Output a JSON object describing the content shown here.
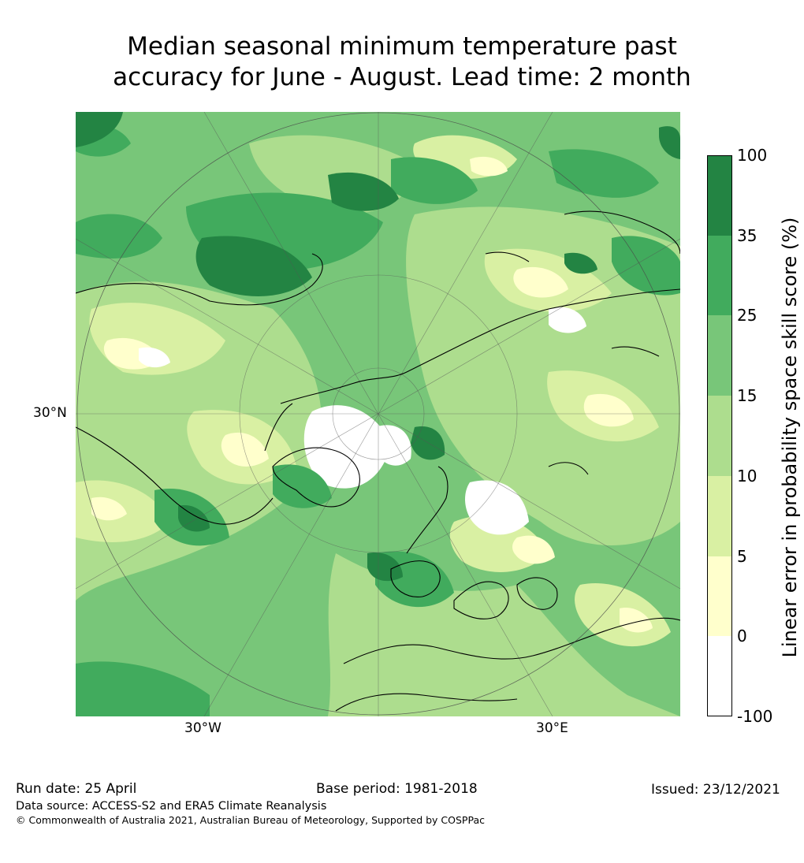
{
  "title_line1": "Median seasonal minimum temperature past",
  "title_line2": "accuracy for June - August. Lead time: 2 month",
  "map": {
    "lat_label": "30°N",
    "lon_labels": [
      "30°W",
      "30°E"
    ]
  },
  "colorbar": {
    "label": "Linear error in probability space skill score (%)",
    "ticks": [
      "100",
      "35",
      "25",
      "15",
      "10",
      "5",
      "0",
      "-100"
    ],
    "colors": [
      "#238443",
      "#41ab5d",
      "#78c679",
      "#addd8e",
      "#d9f0a3",
      "#ffffcc",
      "#ffffff"
    ]
  },
  "footer": {
    "run_date": "Run date: 25 April",
    "base_period": "Base period: 1981-2018",
    "issued": "Issued: 23/12/2021",
    "data_source": "Data source: ACCESS-S2 and ERA5 Climate Reanalysis",
    "copyright": "© Commonwealth of Australia 2021, Australian Bureau of Meteorology, Supported by COSPPac"
  }
}
